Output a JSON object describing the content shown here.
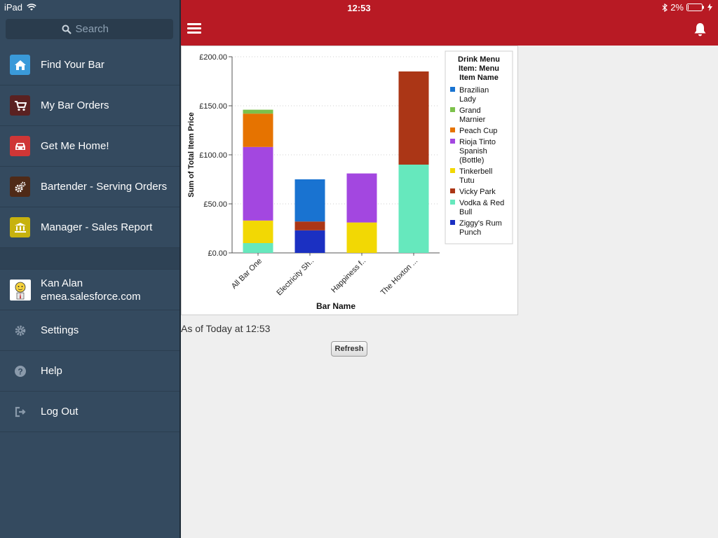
{
  "status": {
    "device": "iPad",
    "time": "12:53",
    "battery": "2%"
  },
  "search": {
    "placeholder": "Search"
  },
  "menu": [
    {
      "label": "Find Your Bar",
      "icon": "home-icon",
      "color": "#3a9ad9"
    },
    {
      "label": "My Bar Orders",
      "icon": "cart-icon",
      "color": "#5a2121"
    },
    {
      "label": "Get Me Home!",
      "icon": "car-icon",
      "color": "#cf3636"
    },
    {
      "label": "Bartender - Serving Orders",
      "icon": "gears-icon",
      "color": "#4f2a17"
    },
    {
      "label": "Manager - Sales Report",
      "icon": "bank-icon",
      "color": "#c7b20e"
    }
  ],
  "user": {
    "name": "Kan Alan",
    "org": "emea.salesforce.com"
  },
  "bottom_menu": [
    {
      "label": "Settings",
      "icon": "gear-icon"
    },
    {
      "label": "Help",
      "icon": "help-icon"
    },
    {
      "label": "Log Out",
      "icon": "logout-icon"
    }
  ],
  "report": {
    "as_of": "As of Today at 12:53",
    "refresh_label": "Refresh"
  },
  "colors": {
    "header": "#b81a24",
    "sidebar": "#344a5f"
  },
  "chart_data": {
    "type": "bar",
    "stacked": true,
    "xlabel": "Bar Name",
    "ylabel": "Sum of Total Item Price",
    "ylim": [
      0,
      200
    ],
    "yticks": [
      "£0.00",
      "£50.00",
      "£100.00",
      "£150.00",
      "£200.00"
    ],
    "grid": true,
    "legend_title": "Drink Menu Item: Menu Item Name",
    "legend_placement": "right",
    "categories": [
      "All Bar One",
      "Electricity Sh..",
      "Happiness f..",
      "The Hoxton ..."
    ],
    "series": [
      {
        "name": "Vodka & Red Bull",
        "color": "#66e8bd",
        "values": [
          10,
          0,
          0,
          90
        ]
      },
      {
        "name": "Tinkerbell Tutu",
        "color": "#f2d804",
        "values": [
          23,
          0,
          31,
          0
        ]
      },
      {
        "name": "Ziggy's Rum Punch",
        "color": "#1b30c2",
        "values": [
          0,
          23,
          0,
          0
        ]
      },
      {
        "name": "Vicky Park",
        "color": "#ab3616",
        "values": [
          0,
          9,
          0,
          95
        ]
      },
      {
        "name": "Rioja Tinto Spanish (Bottle)",
        "color": "#a347e0",
        "values": [
          75,
          0,
          50,
          0
        ]
      },
      {
        "name": "Peach Cup",
        "color": "#e67300",
        "values": [
          34,
          0,
          0,
          0
        ]
      },
      {
        "name": "Brazilian Lady",
        "color": "#1973d1",
        "values": [
          0,
          43,
          0,
          0
        ]
      },
      {
        "name": "Grand Marnier",
        "color": "#7cc14b",
        "values": [
          4,
          0,
          0,
          0
        ]
      }
    ],
    "legend_order": [
      "Brazilian Lady",
      "Grand Marnier",
      "Peach Cup",
      "Rioja Tinto Spanish (Bottle)",
      "Tinkerbell Tutu",
      "Vicky Park",
      "Vodka & Red Bull",
      "Ziggy's Rum Punch"
    ],
    "legend_lines": {
      "Brazilian Lady": [
        "Brazilian",
        "Lady"
      ],
      "Grand Marnier": [
        "Grand",
        "Marnier"
      ],
      "Peach Cup": [
        "Peach Cup"
      ],
      "Rioja Tinto Spanish (Bottle)": [
        "Rioja Tinto",
        "Spanish",
        "(Bottle)"
      ],
      "Tinkerbell Tutu": [
        "Tinkerbell",
        "Tutu"
      ],
      "Vicky Park": [
        "Vicky Park"
      ],
      "Vodka & Red Bull": [
        "Vodka & Red",
        "Bull"
      ],
      "Ziggy's Rum Punch": [
        "Ziggy's Rum",
        "Punch"
      ]
    }
  }
}
